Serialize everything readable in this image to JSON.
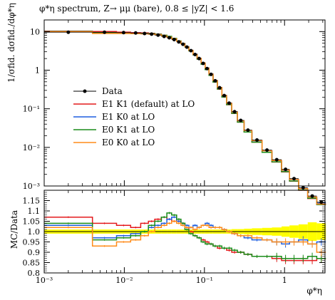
{
  "chart_data": [
    {
      "type": "line",
      "panel": "main",
      "title": "φ*η spectrum, Z→ μμ (bare), 0.8 ≤ |yZ| < 1.6",
      "ylabel": "1/σfid. dσfid./dφ*η",
      "xscale": "log",
      "yscale": "log",
      "xlim": [
        0.001,
        3.2
      ],
      "ylim": [
        0.001,
        20
      ],
      "x_ticks": [
        {
          "value": 0.001,
          "label": "10⁻³"
        },
        {
          "value": 0.01,
          "label": "10⁻²"
        },
        {
          "value": 0.1,
          "label": "10⁻¹"
        },
        {
          "value": 1,
          "label": "1"
        }
      ],
      "y_ticks": [
        {
          "value": 10,
          "label": "10"
        },
        {
          "value": 1,
          "label": "1"
        },
        {
          "value": 0.1,
          "label": "10⁻¹"
        },
        {
          "value": 0.01,
          "label": "10⁻²"
        },
        {
          "value": 0.001,
          "label": "10⁻³"
        }
      ],
      "bin_edges": [
        0.001,
        0.004,
        0.008,
        0.012,
        0.016,
        0.02,
        0.024,
        0.029,
        0.034,
        0.039,
        0.045,
        0.051,
        0.057,
        0.064,
        0.072,
        0.081,
        0.091,
        0.102,
        0.114,
        0.128,
        0.145,
        0.165,
        0.189,
        0.219,
        0.258,
        0.312,
        0.391,
        0.524,
        0.695,
        0.918,
        1.153,
        1.496,
        1.947,
        2.522,
        3.277
      ],
      "data_points": [
        9.6,
        9.6,
        9.4,
        9.2,
        8.9,
        8.6,
        8.1,
        7.5,
        6.9,
        6.2,
        5.4,
        4.7,
        3.95,
        3.2,
        2.55,
        2.0,
        1.5,
        1.1,
        0.78,
        0.53,
        0.35,
        0.22,
        0.14,
        0.084,
        0.05,
        0.028,
        0.0155,
        0.0085,
        0.0048,
        0.0027,
        0.00155,
        0.0009,
        0.00055,
        0.00038
      ],
      "series": [
        {
          "name": "E1 K1 (default) at LO",
          "color": "#e41a1c",
          "ratio": [
            1.07,
            1.04,
            1.03,
            1.02,
            1.04,
            1.05,
            1.06,
            1.07,
            1.06,
            1.05,
            1.05,
            1.04,
            1.02,
            1.0,
            0.98,
            0.97,
            0.96,
            0.95,
            0.94,
            0.93,
            0.92,
            0.92,
            0.91,
            0.9,
            0.9,
            0.89,
            0.88,
            0.88,
            0.87,
            0.86,
            0.86,
            0.86,
            0.86,
            0.87
          ]
        },
        {
          "name": "E1 K0 at LO",
          "color": "#1f5fe0",
          "ratio": [
            1.03,
            0.97,
            0.98,
            0.99,
            1.0,
            1.02,
            1.03,
            1.04,
            1.06,
            1.07,
            1.05,
            1.04,
            1.03,
            1.02,
            1.03,
            1.02,
            1.03,
            1.04,
            1.03,
            1.02,
            1.02,
            1.01,
            1.0,
            0.99,
            0.98,
            0.97,
            0.96,
            0.96,
            0.95,
            0.94,
            0.95,
            0.96,
            0.94,
            0.95
          ]
        },
        {
          "name": "E0 K1 at LO",
          "color": "#1a8c1a",
          "ratio": [
            1.04,
            0.96,
            0.97,
            0.98,
            1.0,
            1.03,
            1.05,
            1.07,
            1.09,
            1.08,
            1.06,
            1.04,
            1.01,
            0.99,
            0.98,
            0.97,
            0.95,
            0.94,
            0.94,
            0.93,
            0.93,
            0.92,
            0.92,
            0.91,
            0.9,
            0.89,
            0.88,
            0.88,
            0.88,
            0.87,
            0.87,
            0.87,
            0.88,
            0.87
          ]
        },
        {
          "name": "E0 K0 at LO",
          "color": "#ff8c1a",
          "ratio": [
            1.02,
            0.93,
            0.95,
            0.96,
            0.98,
            1.0,
            1.02,
            1.03,
            1.04,
            1.05,
            1.04,
            1.03,
            1.02,
            1.02,
            1.01,
            1.02,
            1.03,
            1.03,
            1.02,
            1.02,
            1.02,
            1.01,
            1.0,
            0.99,
            0.98,
            0.98,
            0.97,
            0.96,
            0.95,
            0.95,
            0.95,
            0.95,
            0.94,
            0.9
          ]
        }
      ],
      "data_series_name": "Data",
      "legend_position": "center-left",
      "grid": false
    },
    {
      "type": "line",
      "panel": "ratio",
      "ylabel": "MC/Data",
      "xlabel": "φ*η",
      "xscale": "log",
      "xlim": [
        0.001,
        3.2
      ],
      "ylim": [
        0.8,
        1.2
      ],
      "y_ticks": [
        {
          "value": 0.8,
          "label": "0.8"
        },
        {
          "value": 0.85,
          "label": "0.85"
        },
        {
          "value": 0.9,
          "label": "0.9"
        },
        {
          "value": 0.95,
          "label": "0.95"
        },
        {
          "value": 1.0,
          "label": "1.0"
        },
        {
          "value": 1.05,
          "label": "1.05"
        },
        {
          "value": 1.1,
          "label": "1.1"
        },
        {
          "value": 1.15,
          "label": "1.15"
        }
      ],
      "x_ticks": [
        {
          "value": 0.001,
          "label": "10⁻³"
        },
        {
          "value": 0.01,
          "label": "10⁻²"
        },
        {
          "value": 0.1,
          "label": "10⁻¹"
        },
        {
          "value": 1,
          "label": "1"
        }
      ],
      "uncertainty_band_color": "#ffff00",
      "band_halfwidth": [
        0.01,
        0.01,
        0.01,
        0.01,
        0.01,
        0.01,
        0.01,
        0.01,
        0.01,
        0.01,
        0.01,
        0.01,
        0.01,
        0.01,
        0.01,
        0.01,
        0.01,
        0.01,
        0.01,
        0.01,
        0.01,
        0.01,
        0.01,
        0.012,
        0.012,
        0.014,
        0.016,
        0.018,
        0.02,
        0.025,
        0.03,
        0.035,
        0.045,
        0.04
      ]
    }
  ]
}
